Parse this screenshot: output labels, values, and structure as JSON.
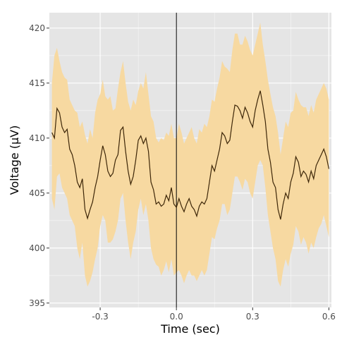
{
  "chart_data": {
    "type": "line",
    "title": "",
    "xlabel": "Time (sec)",
    "ylabel": "Voltage (µV)",
    "xlim": [
      -0.5,
      0.61
    ],
    "ylim": [
      394.6,
      421.4
    ],
    "x_ticks": [
      -0.3,
      0.0,
      0.3,
      0.6
    ],
    "x_tick_labels": [
      "-0.3",
      "0.0",
      "0.3",
      "0.6"
    ],
    "y_ticks": [
      395,
      400,
      405,
      410,
      415,
      420
    ],
    "y_tick_labels": [
      "395",
      "400",
      "405",
      "410",
      "415",
      "420"
    ],
    "grid": true,
    "vline_x": 0.0,
    "colors": {
      "panel": "#e5e5e5",
      "band": "#f7d9a1",
      "line": "#3d2608",
      "grid": "#ffffff",
      "vline": "#000000"
    },
    "series": [
      {
        "x": [
          -0.49,
          -0.48,
          -0.47,
          -0.46,
          -0.45,
          -0.44,
          -0.43,
          -0.42,
          -0.41,
          -0.4,
          -0.39,
          -0.38,
          -0.37,
          -0.36,
          -0.35,
          -0.34,
          -0.33,
          -0.32,
          -0.31,
          -0.3,
          -0.29,
          -0.28,
          -0.27,
          -0.26,
          -0.25,
          -0.24,
          -0.23,
          -0.22,
          -0.21,
          -0.2,
          -0.19,
          -0.18,
          -0.17,
          -0.16,
          -0.15,
          -0.14,
          -0.13,
          -0.12,
          -0.11,
          -0.1,
          -0.09,
          -0.08,
          -0.07,
          -0.06,
          -0.05,
          -0.04,
          -0.03,
          -0.02,
          -0.01,
          0.0,
          0.01,
          0.02,
          0.03,
          0.04,
          0.05,
          0.06,
          0.07,
          0.08,
          0.09,
          0.1,
          0.11,
          0.12,
          0.13,
          0.14,
          0.15,
          0.16,
          0.17,
          0.18,
          0.19,
          0.2,
          0.21,
          0.22,
          0.23,
          0.24,
          0.25,
          0.26,
          0.27,
          0.28,
          0.29,
          0.3,
          0.31,
          0.32,
          0.33,
          0.34,
          0.35,
          0.36,
          0.37,
          0.38,
          0.39,
          0.4,
          0.41,
          0.42,
          0.43,
          0.44,
          0.45,
          0.46,
          0.47,
          0.48,
          0.49,
          0.5,
          0.51,
          0.52,
          0.53,
          0.54,
          0.55,
          0.56,
          0.57,
          0.58,
          0.59,
          0.6
        ],
        "y": [
          410.5,
          410.0,
          412.7,
          412.3,
          411.0,
          410.5,
          410.8,
          409.0,
          408.5,
          407.5,
          406.0,
          405.5,
          406.3,
          403.5,
          402.7,
          403.5,
          404.2,
          405.5,
          406.5,
          408.0,
          409.3,
          408.5,
          407.0,
          406.5,
          406.8,
          408.0,
          408.5,
          410.7,
          411.0,
          408.8,
          407.0,
          405.8,
          406.5,
          408.0,
          409.8,
          410.2,
          409.5,
          410.0,
          408.8,
          406.0,
          405.3,
          404.0,
          404.2,
          403.8,
          404.0,
          404.8,
          404.3,
          405.5,
          404.0,
          403.7,
          404.5,
          403.8,
          403.3,
          404.0,
          404.5,
          403.8,
          403.5,
          402.9,
          403.8,
          404.2,
          404.0,
          404.5,
          406.0,
          407.5,
          407.0,
          408.0,
          409.0,
          410.5,
          410.2,
          409.5,
          409.8,
          411.5,
          413.0,
          412.9,
          412.5,
          411.8,
          412.8,
          412.3,
          411.5,
          411.0,
          412.5,
          413.5,
          414.3,
          413.0,
          411.5,
          409.0,
          407.8,
          406.0,
          405.5,
          403.5,
          402.6,
          404.0,
          405.0,
          404.5,
          406.0,
          406.8,
          408.3,
          407.8,
          406.5,
          407.0,
          406.7,
          406.0,
          407.0,
          406.3,
          407.5,
          408.0,
          408.5,
          409.0,
          408.3,
          407.2
        ],
        "upper": [
          415.0,
          417.5,
          418.2,
          417.0,
          416.0,
          415.5,
          415.3,
          413.5,
          413.0,
          412.5,
          412.3,
          411.0,
          411.5,
          410.3,
          409.5,
          410.8,
          410.0,
          412.3,
          413.5,
          414.0,
          415.3,
          413.8,
          413.5,
          413.8,
          412.5,
          412.7,
          414.5,
          416.0,
          417.0,
          415.0,
          413.3,
          412.5,
          413.5,
          413.0,
          414.3,
          415.0,
          414.5,
          416.0,
          414.0,
          412.0,
          411.5,
          410.0,
          409.6,
          410.0,
          409.8,
          410.5,
          410.2,
          411.3,
          410.0,
          410.0,
          411.3,
          410.5,
          409.5,
          410.0,
          410.5,
          411.0,
          410.0,
          409.5,
          410.8,
          410.5,
          411.3,
          411.0,
          412.0,
          413.5,
          413.3,
          414.5,
          415.5,
          417.0,
          416.5,
          416.3,
          416.0,
          418.0,
          419.5,
          419.5,
          418.5,
          418.5,
          419.3,
          418.8,
          418.0,
          417.5,
          418.5,
          419.5,
          420.5,
          418.5,
          417.0,
          415.3,
          414.0,
          412.8,
          412.0,
          410.5,
          408.5,
          410.0,
          411.5,
          411.0,
          412.3,
          412.5,
          414.2,
          413.5,
          413.0,
          412.8,
          412.8,
          412.0,
          413.0,
          412.3,
          413.5,
          414.0,
          414.5,
          415.0,
          414.5,
          413.5
        ],
        "lower": [
          404.5,
          403.5,
          406.5,
          406.8,
          405.5,
          405.0,
          404.5,
          403.0,
          402.5,
          402.0,
          400.0,
          399.0,
          400.5,
          397.5,
          396.5,
          397.0,
          397.8,
          399.0,
          400.0,
          402.0,
          403.0,
          402.5,
          400.5,
          400.5,
          400.8,
          401.5,
          402.5,
          404.5,
          405.0,
          402.5,
          400.5,
          399.0,
          400.5,
          401.5,
          403.5,
          404.5,
          403.0,
          404.0,
          402.5,
          400.0,
          399.0,
          398.5,
          398.3,
          397.5,
          398.0,
          398.8,
          397.8,
          399.0,
          397.5,
          397.8,
          398.0,
          397.5,
          396.8,
          397.5,
          398.0,
          397.5,
          397.5,
          397.0,
          397.5,
          398.0,
          397.5,
          398.0,
          399.5,
          401.0,
          400.8,
          401.8,
          402.5,
          404.0,
          404.0,
          403.0,
          403.5,
          405.0,
          406.5,
          406.5,
          406.0,
          405.3,
          406.3,
          406.0,
          405.0,
          404.5,
          406.0,
          407.5,
          408.0,
          407.5,
          405.5,
          403.0,
          401.5,
          400.0,
          399.0,
          397.0,
          396.5,
          398.0,
          399.0,
          398.3,
          399.5,
          400.3,
          402.0,
          401.5,
          400.3,
          401.0,
          400.5,
          399.5,
          400.5,
          400.0,
          401.0,
          401.8,
          402.2,
          403.0,
          402.0,
          401.0
        ]
      }
    ]
  }
}
